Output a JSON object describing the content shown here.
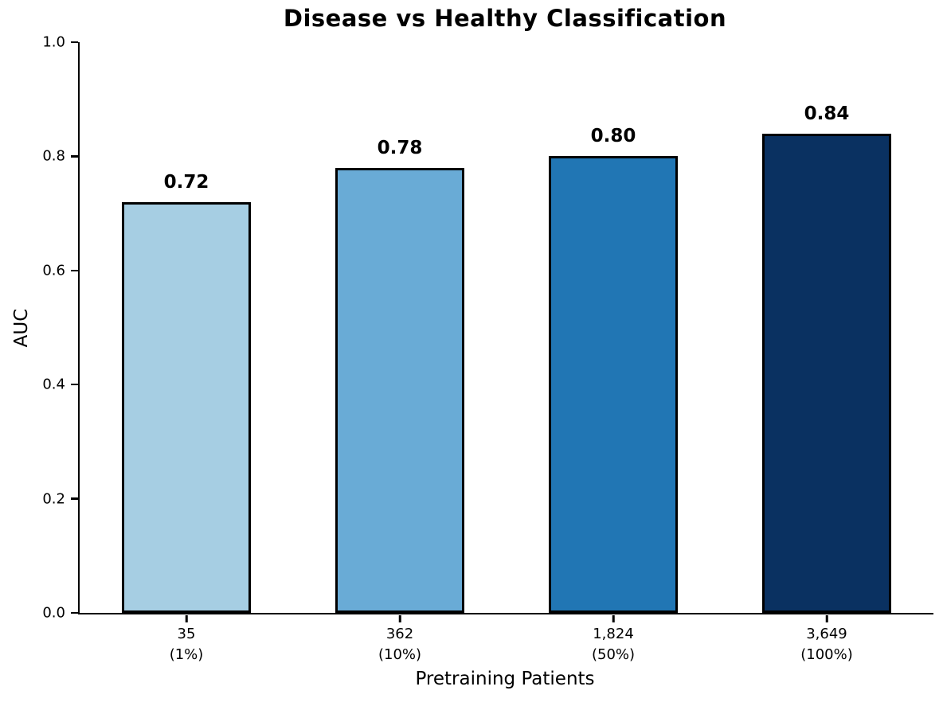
{
  "chart_data": {
    "type": "bar",
    "title": "Disease vs Healthy Classification",
    "xlabel": "Pretraining Patients",
    "ylabel": "AUC",
    "categories": [
      "35",
      "362",
      "1,824",
      "3,649"
    ],
    "category_sublabels": [
      "(1%)",
      "(10%)",
      "(50%)",
      "(100%)"
    ],
    "values": [
      0.72,
      0.78,
      0.8,
      0.84
    ],
    "value_labels": [
      "0.72",
      "0.78",
      "0.80",
      "0.84"
    ],
    "bar_colors": [
      "#a6cee3",
      "#69abd6",
      "#2176b4",
      "#0a3161"
    ],
    "bar_edge_color": "#000000",
    "ylim": [
      0.0,
      1.0
    ],
    "ytick_labels": [
      "0.0",
      "0.2",
      "0.4",
      "0.6",
      "0.8",
      "1.0"
    ],
    "grid": false,
    "legend": null
  }
}
